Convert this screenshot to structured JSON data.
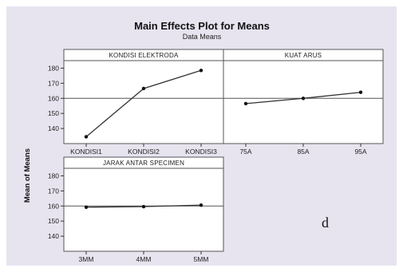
{
  "title": "Main Effects Plot for Means",
  "subtitle": "Data Means",
  "ylabel": "Mean of Means",
  "annotation": "d",
  "colors": {
    "canvas": "#e7e4f0",
    "plot_bg": "#ffffff",
    "line": "#333333",
    "reference_line": "#555555"
  },
  "chart_data": [
    {
      "type": "line",
      "title": "KONDISI ELEKTRODA",
      "categories": [
        "KONDISI1",
        "KONDISI2",
        "KONDISI3"
      ],
      "values": [
        134.5,
        166.5,
        178.5
      ],
      "reference_mean": 160,
      "ylim": [
        130,
        185
      ],
      "yticks": [
        140,
        150,
        160,
        170,
        180
      ]
    },
    {
      "type": "line",
      "title": "KUAT ARUS",
      "categories": [
        "75A",
        "85A",
        "95A"
      ],
      "values": [
        156.5,
        160,
        164
      ],
      "reference_mean": 160,
      "ylim": [
        130,
        185
      ],
      "yticks": [
        140,
        150,
        160,
        170,
        180
      ]
    },
    {
      "type": "line",
      "title": "JARAK ANTAR SPECIMEN",
      "categories": [
        "3MM",
        "4MM",
        "5MM"
      ],
      "values": [
        159.2,
        159.6,
        160.6
      ],
      "reference_mean": 160,
      "ylim": [
        130,
        185
      ],
      "yticks": [
        140,
        150,
        160,
        170,
        180
      ]
    }
  ]
}
